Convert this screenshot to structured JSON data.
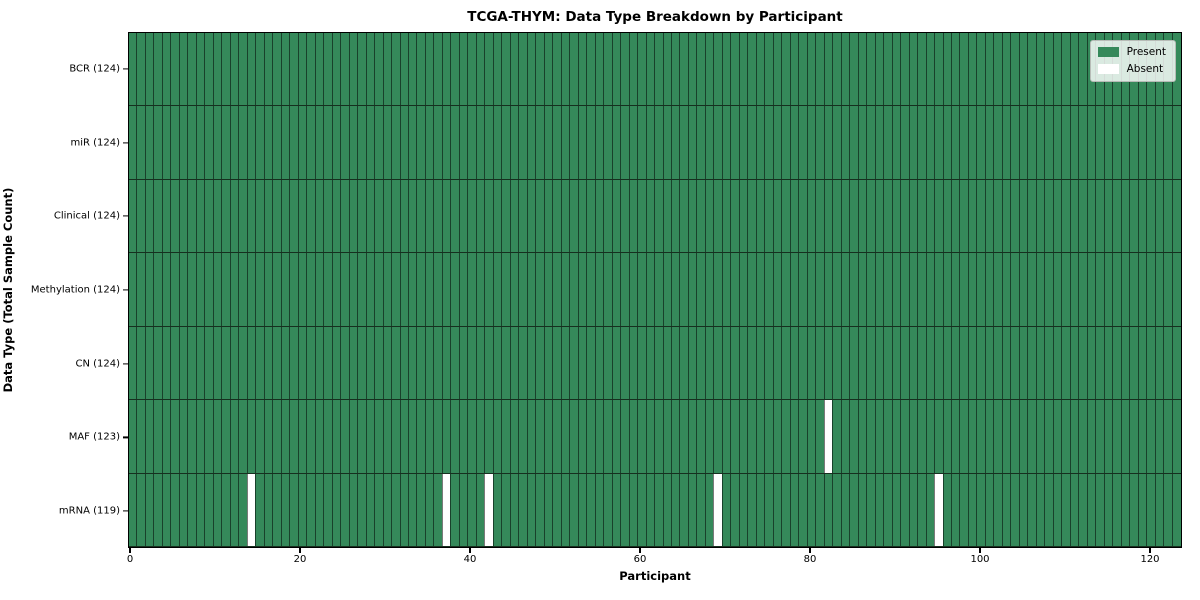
{
  "chart_data": {
    "type": "heatmap",
    "title": "TCGA-THYM: Data Type Breakdown by Participant",
    "xlabel": "Participant",
    "ylabel": "Data Type (Total Sample Count)",
    "x_ticks": [
      0,
      20,
      40,
      60,
      80,
      100,
      120
    ],
    "x_range": [
      0,
      124
    ],
    "n_participants": 124,
    "grid": "cell-borders",
    "colors": {
      "present": "#35895a",
      "absent": "#ffffff",
      "cell_border": "rgba(0,0,0,0.52)",
      "row_border": "#16301f",
      "spine": "#000000"
    },
    "legend": {
      "position": "upper right",
      "entries": [
        {
          "label": "Present",
          "color": "#35895a"
        },
        {
          "label": "Absent",
          "color": "#ffffff"
        }
      ]
    },
    "rows": [
      {
        "label": "BCR (124)",
        "data_type": "BCR",
        "total": 124,
        "absent_participants": []
      },
      {
        "label": "miR (124)",
        "data_type": "miR",
        "total": 124,
        "absent_participants": []
      },
      {
        "label": "Clinical (124)",
        "data_type": "Clinical",
        "total": 124,
        "absent_participants": []
      },
      {
        "label": "Methylation (124)",
        "data_type": "Methylation",
        "total": 124,
        "absent_participants": []
      },
      {
        "label": "CN (124)",
        "data_type": "CN",
        "total": 124,
        "absent_participants": []
      },
      {
        "label": "MAF (123)",
        "data_type": "MAF",
        "total": 123,
        "absent_participants": [
          82
        ]
      },
      {
        "label": "mRNA (119)",
        "data_type": "mRNA",
        "total": 119,
        "absent_participants": [
          14,
          37,
          42,
          69,
          95
        ]
      }
    ]
  }
}
